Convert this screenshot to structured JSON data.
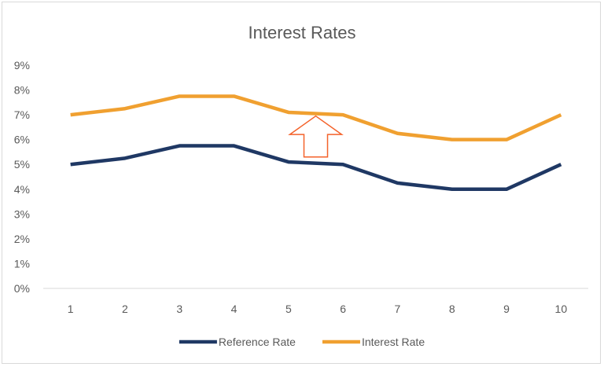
{
  "chart_data": {
    "type": "line",
    "title": "Interest Rates",
    "xlabel": "",
    "ylabel": "",
    "categories": [
      "1",
      "2",
      "3",
      "4",
      "5",
      "6",
      "7",
      "8",
      "9",
      "10"
    ],
    "y_ticks": [
      "0%",
      "1%",
      "2%",
      "3%",
      "4%",
      "5%",
      "6%",
      "7%",
      "8%",
      "9%"
    ],
    "ylim": [
      0,
      9
    ],
    "grid": false,
    "legend_position": "bottom",
    "series": [
      {
        "name": "Reference Rate",
        "color": "#1f3864",
        "values": [
          5.0,
          5.25,
          5.75,
          5.75,
          5.1,
          5.0,
          4.25,
          4.0,
          4.0,
          5.0
        ]
      },
      {
        "name": "Interest Rate",
        "color": "#f0a030",
        "values": [
          7.0,
          7.25,
          7.75,
          7.75,
          7.1,
          7.0,
          6.25,
          6.0,
          6.0,
          7.0
        ]
      }
    ],
    "annotations": [
      {
        "type": "up-arrow",
        "color": "#f4622a",
        "x": 5.5,
        "y_top": 6.95,
        "y_bottom": 5.3
      }
    ]
  }
}
